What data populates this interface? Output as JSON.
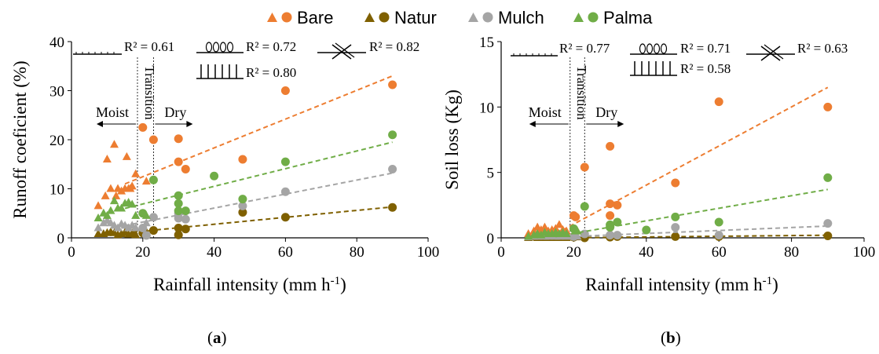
{
  "legend": {
    "items": [
      {
        "name": "Bare",
        "color": "#ED7D31"
      },
      {
        "name": "Natur",
        "color": "#7F6000"
      },
      {
        "name": "Mulch",
        "color": "#A5A5A5"
      },
      {
        "name": "Palma",
        "color": "#70AD47"
      }
    ]
  },
  "panels": [
    {
      "label_open": "(",
      "label_letter": "a",
      "label_close": ")"
    },
    {
      "label_open": "(",
      "label_letter": "b",
      "label_close": ")"
    }
  ],
  "chart_data": [
    {
      "type": "scatter",
      "xlabel": "Rainfall intensity (mm h",
      "xlabel_sup": "-1",
      "xlabel_tail": ")",
      "ylabel": "Runoff coeficient (%)",
      "xlim": [
        0,
        100
      ],
      "ylim": [
        0,
        40
      ],
      "xticks": [
        0,
        20,
        40,
        60,
        80,
        100
      ],
      "yticks": [
        0,
        10,
        20,
        30,
        40
      ],
      "grid": false,
      "annotations": {
        "moist": "Moist",
        "dry": "Dry",
        "transition": "Transition",
        "transition_x": [
          18.5,
          23
        ],
        "r2": [
          "R² = 0.61",
          "R² = 0.72",
          "R² = 0.82",
          "R² = 0.80"
        ]
      },
      "series": [
        {
          "name": "Bare",
          "color": "#ED7D31",
          "triangles": [
            [
              7.5,
              6.5
            ],
            [
              9.5,
              8.5
            ],
            [
              10,
              16
            ],
            [
              11,
              10
            ],
            [
              12,
              19
            ],
            [
              12.5,
              8.5
            ],
            [
              13,
              10
            ],
            [
              14,
              9.5
            ],
            [
              15,
              10
            ],
            [
              15.5,
              16.5
            ],
            [
              16,
              10
            ],
            [
              16.5,
              10
            ],
            [
              17,
              10.5
            ],
            [
              18,
              13
            ],
            [
              21,
              11.5
            ]
          ],
          "circles": [
            [
              20,
              22.5
            ],
            [
              23,
              20
            ],
            [
              30,
              20.2
            ],
            [
              30,
              15.5
            ],
            [
              32,
              14
            ],
            [
              48,
              16
            ],
            [
              60,
              30
            ],
            [
              90,
              31.2
            ]
          ],
          "trend": [
            [
              15,
              11
            ],
            [
              90,
              33
            ]
          ]
        },
        {
          "name": "Natur",
          "color": "#7F6000",
          "triangles": [
            [
              7.5,
              0.8
            ],
            [
              9,
              0.8
            ],
            [
              10,
              1
            ],
            [
              11,
              1.2
            ],
            [
              12,
              1
            ],
            [
              13,
              0.6
            ],
            [
              14,
              0.8
            ],
            [
              15,
              1.1
            ],
            [
              16,
              0.7
            ],
            [
              17,
              0.9
            ],
            [
              18,
              0.6
            ],
            [
              21,
              1.2
            ]
          ],
          "circles": [
            [
              20,
              1
            ],
            [
              23,
              1.5
            ],
            [
              30,
              0.6
            ],
            [
              30,
              2
            ],
            [
              32,
              1.8
            ],
            [
              48,
              5.2
            ],
            [
              60,
              4.2
            ],
            [
              90,
              6.2
            ]
          ],
          "trend": [
            [
              15,
              1
            ],
            [
              90,
              6.3
            ]
          ]
        },
        {
          "name": "Mulch",
          "color": "#A5A5A5",
          "triangles": [
            [
              7.5,
              2
            ],
            [
              9,
              3
            ],
            [
              10,
              3.5
            ],
            [
              11,
              3
            ],
            [
              12,
              2.5
            ],
            [
              13,
              2
            ],
            [
              14,
              2.8
            ],
            [
              15,
              2.5
            ],
            [
              16,
              2
            ],
            [
              17,
              2.5
            ],
            [
              18,
              2
            ],
            [
              21,
              3
            ]
          ],
          "circles": [
            [
              20,
              2
            ],
            [
              21,
              0.5
            ],
            [
              23,
              4.2
            ],
            [
              30,
              4
            ],
            [
              30,
              5
            ],
            [
              32,
              3.8
            ],
            [
              48,
              6.5
            ],
            [
              60,
              9.4
            ],
            [
              90,
              14
            ]
          ],
          "trend": [
            [
              15,
              2.5
            ],
            [
              90,
              13.2
            ]
          ]
        },
        {
          "name": "Palma",
          "color": "#70AD47",
          "triangles": [
            [
              7.5,
              4
            ],
            [
              9,
              5
            ],
            [
              10,
              4.5
            ],
            [
              11,
              5.5
            ],
            [
              12,
              7.5
            ],
            [
              13,
              6
            ],
            [
              14,
              6
            ],
            [
              15,
              7
            ],
            [
              16,
              7.2
            ],
            [
              17,
              6.8
            ],
            [
              18,
              4.5
            ],
            [
              21,
              4.5
            ]
          ],
          "circles": [
            [
              20,
              5
            ],
            [
              23,
              11.8
            ],
            [
              30,
              8.6
            ],
            [
              30,
              7
            ],
            [
              30,
              5.5
            ],
            [
              32,
              5.5
            ],
            [
              40,
              12.6
            ],
            [
              48,
              7.9
            ],
            [
              60,
              15.5
            ],
            [
              90,
              21
            ]
          ],
          "trend": [
            [
              15,
              6
            ],
            [
              90,
              19.5
            ]
          ]
        }
      ]
    },
    {
      "type": "scatter",
      "xlabel": "Rainfall intensity (mm h",
      "xlabel_sup": "-1",
      "xlabel_tail": ")",
      "ylabel": "Soil loss (Kg)",
      "xlim": [
        0,
        100
      ],
      "ylim": [
        0,
        15
      ],
      "xticks": [
        0,
        20,
        40,
        60,
        80,
        100
      ],
      "yticks": [
        0,
        5,
        10,
        15
      ],
      "grid": false,
      "annotations": {
        "moist": "Moist",
        "dry": "Dry",
        "transition": "Transition",
        "transition_x": [
          19,
          23
        ],
        "r2": [
          "R² = 0.77",
          "R² = 0.71",
          "R² = 0.63",
          "R² = 0.58"
        ]
      },
      "series": [
        {
          "name": "Bare",
          "color": "#ED7D31",
          "triangles": [
            [
              7.5,
              0.3
            ],
            [
              9,
              0.5
            ],
            [
              10,
              0.8
            ],
            [
              11,
              0.6
            ],
            [
              12,
              0.8
            ],
            [
              13,
              0.5
            ],
            [
              14,
              0.6
            ],
            [
              15,
              0.7
            ],
            [
              16,
              1
            ],
            [
              17,
              0.6
            ],
            [
              18,
              0.5
            ],
            [
              21,
              0.5
            ]
          ],
          "circles": [
            [
              20,
              1.7
            ],
            [
              20.5,
              1.6
            ],
            [
              23,
              5.4
            ],
            [
              30,
              7
            ],
            [
              30,
              2.6
            ],
            [
              30,
              1.7
            ],
            [
              32,
              2.5
            ],
            [
              48,
              4.2
            ],
            [
              60,
              10.4
            ],
            [
              90,
              10
            ]
          ],
          "trend": [
            [
              15,
              0.3
            ],
            [
              90,
              11.5
            ]
          ]
        },
        {
          "name": "Natur",
          "color": "#7F6000",
          "triangles": [
            [
              7.5,
              0
            ],
            [
              9,
              0.05
            ],
            [
              10,
              0
            ],
            [
              11,
              0.05
            ],
            [
              12,
              0
            ],
            [
              13,
              0.05
            ],
            [
              14,
              0
            ],
            [
              15,
              0.05
            ],
            [
              16,
              0
            ],
            [
              17,
              0.05
            ],
            [
              18,
              0
            ],
            [
              21,
              0.05
            ]
          ],
          "circles": [
            [
              20,
              0.05
            ],
            [
              23,
              0
            ],
            [
              30,
              0.05
            ],
            [
              32,
              0.1
            ],
            [
              48,
              0.1
            ],
            [
              60,
              0.1
            ],
            [
              90,
              0.15
            ]
          ],
          "trend": [
            [
              15,
              0
            ],
            [
              90,
              0.2
            ]
          ]
        },
        {
          "name": "Mulch",
          "color": "#A5A5A5",
          "triangles": [
            [
              7.5,
              0.05
            ],
            [
              9,
              0.1
            ],
            [
              10,
              0.1
            ],
            [
              11,
              0.15
            ],
            [
              12,
              0.1
            ],
            [
              13,
              0.1
            ],
            [
              14,
              0.15
            ],
            [
              15,
              0.1
            ],
            [
              16,
              0.1
            ],
            [
              17,
              0.15
            ],
            [
              18,
              0.1
            ],
            [
              21,
              0.1
            ]
          ],
          "circles": [
            [
              20,
              0.1
            ],
            [
              23,
              0.3
            ],
            [
              30,
              0.2
            ],
            [
              32,
              0.2
            ],
            [
              48,
              0.8
            ],
            [
              60,
              0.2
            ],
            [
              90,
              1.1
            ]
          ],
          "trend": [
            [
              15,
              0.05
            ],
            [
              90,
              0.9
            ]
          ]
        },
        {
          "name": "Palma",
          "color": "#70AD47",
          "triangles": [
            [
              7.5,
              0.1
            ],
            [
              9,
              0.2
            ],
            [
              10,
              0.3
            ],
            [
              11,
              0.2
            ],
            [
              12,
              0.4
            ],
            [
              13,
              0.3
            ],
            [
              14,
              0.3
            ],
            [
              15,
              0.4
            ],
            [
              16,
              0.3
            ],
            [
              17,
              0.4
            ],
            [
              18,
              0.3
            ],
            [
              21,
              0.5
            ]
          ],
          "circles": [
            [
              20,
              0.7
            ],
            [
              23,
              2.4
            ],
            [
              30,
              1
            ],
            [
              30,
              0.8
            ],
            [
              32,
              1.2
            ],
            [
              40,
              0.6
            ],
            [
              48,
              1.6
            ],
            [
              60,
              1.2
            ],
            [
              90,
              4.6
            ]
          ],
          "trend": [
            [
              15,
              0.1
            ],
            [
              90,
              3.7
            ]
          ]
        }
      ]
    }
  ]
}
